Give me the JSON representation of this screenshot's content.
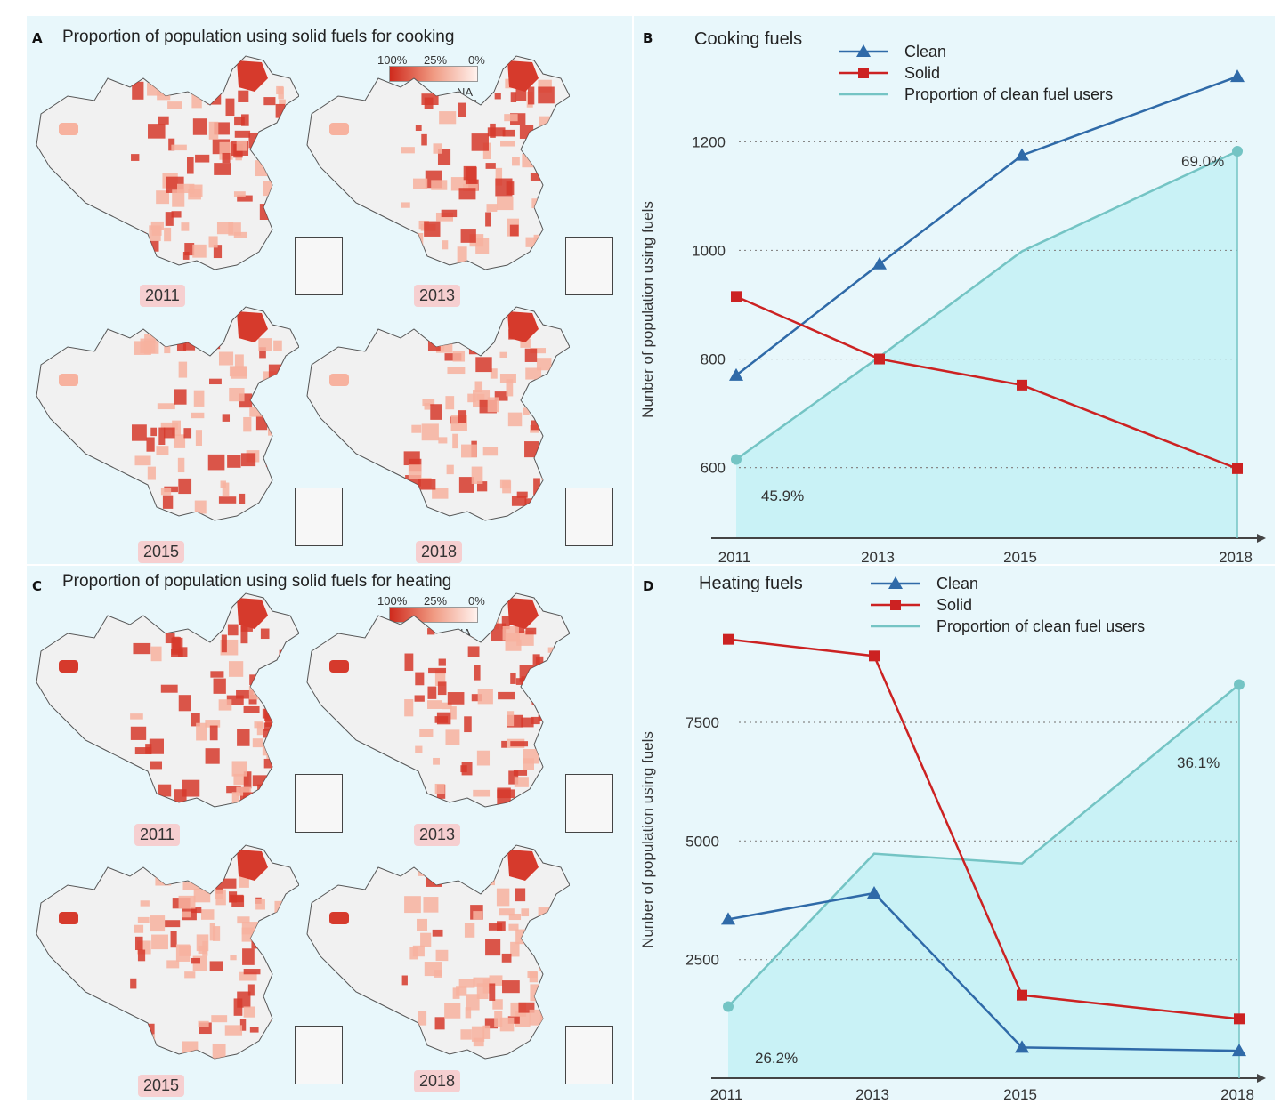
{
  "panels": {
    "A": {
      "letter": "A",
      "title": "Proportion of population using solid fuels for cooking",
      "scale": {
        "high": "100%",
        "mid": "25%",
        "low": "0%",
        "na": "NA"
      },
      "years": [
        "2011",
        "2013",
        "2015",
        "2018"
      ]
    },
    "C": {
      "letter": "C",
      "title": "Proportion of population using solid fuels for heating",
      "scale": {
        "high": "100%",
        "mid": "25%",
        "low": "0%",
        "na": "NA"
      },
      "years": [
        "2011",
        "2013",
        "2015",
        "2018"
      ]
    },
    "B": {
      "letter": "B"
    },
    "D": {
      "letter": "D"
    }
  },
  "colors": {
    "clean": "#2f6aa8",
    "solid": "#cc2222",
    "proportion": "#74c4c4",
    "area_fill": "#c9f2f6",
    "map_dark": "#d63a2c",
    "map_light": "#f7b29f",
    "map_base": "#f1f1f1"
  },
  "chart_data": [
    {
      "type": "line",
      "title": "Cooking fuels",
      "ylabel": "Nunber of population using fuels",
      "x": [
        "2011",
        "2013",
        "2015",
        "2018"
      ],
      "yticks": [
        600,
        800,
        1000,
        1200
      ],
      "ylim": [
        470,
        1330
      ],
      "legend": [
        "Clean",
        "Solid",
        "Proportion of clean fuel users"
      ],
      "series": [
        {
          "name": "Clean",
          "values": [
            770,
            975,
            1175,
            1320
          ]
        },
        {
          "name": "Solid",
          "values": [
            915,
            800,
            752,
            598
          ]
        },
        {
          "name": "Proportion of clean fuel users",
          "values": [
            45.9,
            53.6,
            61.5,
            69.0
          ]
        }
      ],
      "proportion_labels": [
        "45.9%",
        "69.0%"
      ]
    },
    {
      "type": "line",
      "title": "Heating fuels",
      "ylabel": "Nunber of population using fuels",
      "x": [
        "2011",
        "2013",
        "2015",
        "2018"
      ],
      "yticks": [
        2500,
        5000,
        7500
      ],
      "ylim": [
        0,
        9600
      ],
      "legend": [
        "Clean",
        "Solid",
        "Proportion of clean fuel users"
      ],
      "series": [
        {
          "name": "Clean",
          "values": [
            3350,
            3900,
            650,
            580
          ]
        },
        {
          "name": "Solid",
          "values": [
            9250,
            8900,
            1750,
            1250
          ]
        },
        {
          "name": "Proportion of clean fuel users",
          "values": [
            26.2,
            30.9,
            30.6,
            36.1
          ]
        }
      ],
      "proportion_labels": [
        "26.2%",
        "36.1%"
      ]
    }
  ]
}
